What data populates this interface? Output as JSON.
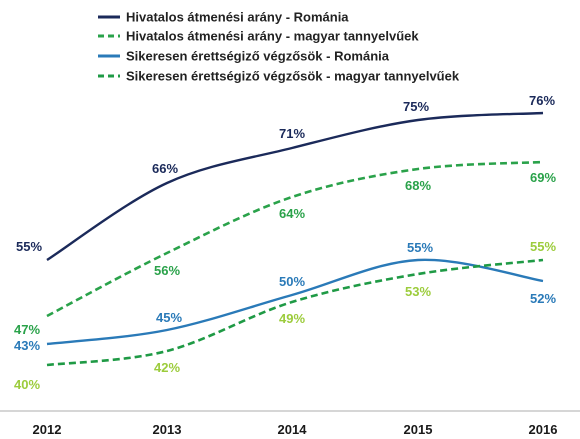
{
  "chart_data": {
    "type": "line",
    "categories": [
      "2012",
      "2013",
      "2014",
      "2015",
      "2016"
    ],
    "ylim": [
      35,
      80
    ],
    "grid": false,
    "legend_position": "top-left",
    "series": [
      {
        "name": "Hivatalos átmenési arány - Románia",
        "values": [
          55,
          66,
          71,
          75,
          76
        ],
        "labels": [
          "55%",
          "66%",
          "71%",
          "75%",
          "76%"
        ],
        "color": "#1b2a5a",
        "line_style": "solid",
        "label_color": "#1b2a5a"
      },
      {
        "name": "Hivatalos átmenési arány - magyar tannyelvűek",
        "values": [
          47,
          56,
          64,
          68,
          69
        ],
        "labels": [
          "47%",
          "56%",
          "64%",
          "68%",
          "69%"
        ],
        "color": "#2aa24a",
        "line_style": "dashed",
        "label_color": "#2aa24a"
      },
      {
        "name": "Sikeresen érettségiző végzősök - Románia",
        "values": [
          43,
          45,
          50,
          55,
          52
        ],
        "labels": [
          "43%",
          "45%",
          "50%",
          "55%",
          "52%"
        ],
        "color": "#2a7ab8",
        "line_style": "solid",
        "label_color": "#2a7ab8"
      },
      {
        "name": "Sikeresen érettségiző végzősök - magyar tannyelvűek",
        "values": [
          40,
          42,
          49,
          53,
          55
        ],
        "labels": [
          "40%",
          "42%",
          "49%",
          "53%",
          "55%"
        ],
        "color": "#1f9a45",
        "line_style": "dashed",
        "label_color": "#9ccc3c"
      }
    ]
  }
}
